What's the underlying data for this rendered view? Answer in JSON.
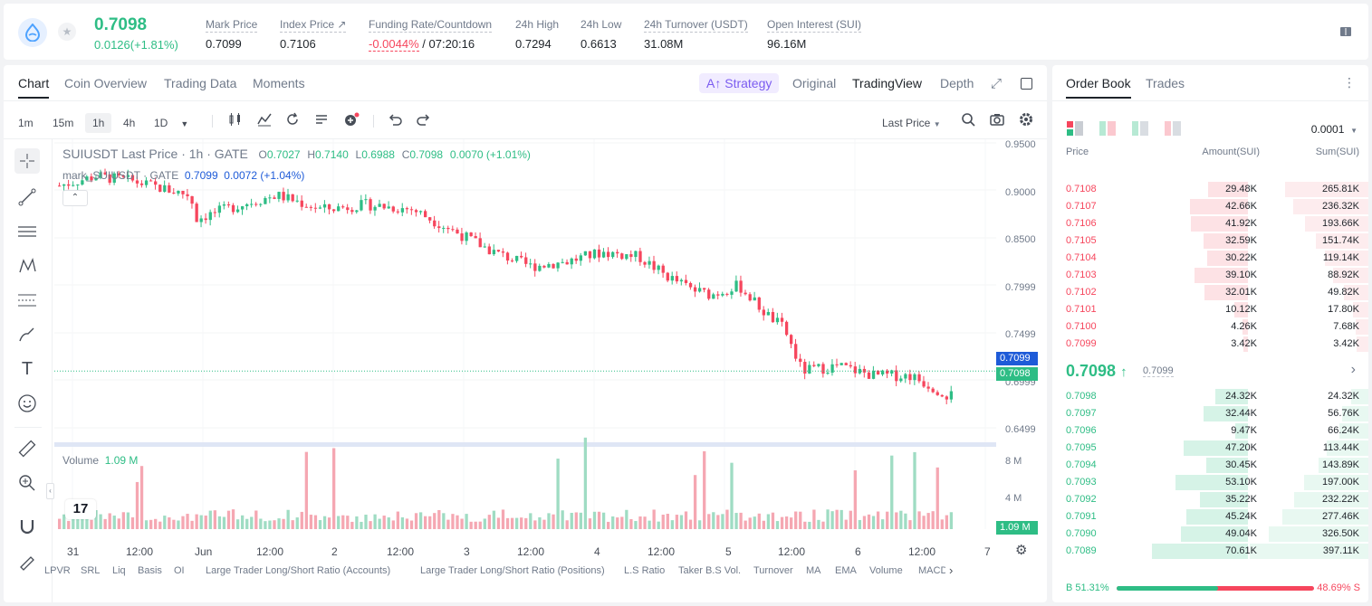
{
  "header": {
    "last_price": "0.7098",
    "change": "0.0126(+1.81%)",
    "stats": [
      {
        "label": "Mark Price",
        "value": "0.7099"
      },
      {
        "label": "Index Price",
        "value": "0.7106"
      },
      {
        "label": "Funding Rate/Countdown",
        "value_neg": "-0.0044%",
        "value": " / 07:20:16"
      },
      {
        "label": "24h High",
        "value": "0.7294"
      },
      {
        "label": "24h Low",
        "value": "0.6613"
      },
      {
        "label": "24h Turnover (USDT)",
        "value": "31.08M"
      },
      {
        "label": "Open Interest (SUI)",
        "value": "96.16M"
      }
    ]
  },
  "chart_tabs": [
    "Chart",
    "Coin Overview",
    "Trading Data",
    "Moments"
  ],
  "view_tabs": {
    "strategy": "Strategy",
    "original": "Original",
    "tradingview": "TradingView",
    "depth": "Depth"
  },
  "intervals": [
    "1m",
    "15m",
    "1h",
    "4h",
    "1D"
  ],
  "last_price_select": "Last Price",
  "legend": {
    "symbol": "SUIUSDT Last Price · 1h · GATE",
    "o": "0.7027",
    "h": "0.7140",
    "l": "0.6988",
    "c": "0.7098",
    "chg": "0.0070 (+1.01%)",
    "mark": "mark_SUIUSDT · GATE",
    "mark_v": "0.7099",
    "mark_chg": "0.0072 (+1.04%)"
  },
  "volume_legend": {
    "label": "Volume",
    "value": "1.09 M"
  },
  "y_labels": [
    "0.9500",
    "0.9000",
    "0.8500",
    "0.7999",
    "0.7499",
    "0.6999",
    "0.6499"
  ],
  "price_tags": {
    "mark": "0.7099",
    "last": "0.7098"
  },
  "vol_y_labels": [
    "8 M",
    "4 M"
  ],
  "vol_tag": "1.09 M",
  "x_labels": [
    "31",
    "12:00",
    "Jun",
    "12:00",
    "2",
    "12:00",
    "3",
    "12:00",
    "4",
    "12:00",
    "5",
    "12:00",
    "6",
    "12:00",
    "7"
  ],
  "indicators": [
    "LPVR",
    "SRL",
    "Liq",
    "Basis",
    "OI",
    "Large Trader Long/Short Ratio (Accounts)",
    "Large Trader Long/Short Ratio (Positions)",
    "L.S Ratio",
    "Taker B.S Vol.",
    "Turnover",
    "MA",
    "EMA",
    "Volume",
    "MACD"
  ],
  "orderbook": {
    "tabs": [
      "Order Book",
      "Trades"
    ],
    "precision": "0.0001",
    "headers": [
      "Price",
      "Amount(SUI)",
      "Sum(SUI)"
    ],
    "asks": [
      {
        "p": "0.7108",
        "a": "29.48K",
        "s": "265.81K"
      },
      {
        "p": "0.7107",
        "a": "42.66K",
        "s": "236.32K"
      },
      {
        "p": "0.7106",
        "a": "41.92K",
        "s": "193.66K"
      },
      {
        "p": "0.7105",
        "a": "32.59K",
        "s": "151.74K"
      },
      {
        "p": "0.7104",
        "a": "30.22K",
        "s": "119.14K"
      },
      {
        "p": "0.7103",
        "a": "39.10K",
        "s": "88.92K"
      },
      {
        "p": "0.7102",
        "a": "32.01K",
        "s": "49.82K"
      },
      {
        "p": "0.7101",
        "a": "10.12K",
        "s": "17.80K"
      },
      {
        "p": "0.7100",
        "a": "4.26K",
        "s": "7.68K"
      },
      {
        "p": "0.7099",
        "a": "3.42K",
        "s": "3.42K"
      }
    ],
    "mid": "0.7098",
    "mid_mark": "0.7099",
    "bids": [
      {
        "p": "0.7098",
        "a": "24.32K",
        "s": "24.32K"
      },
      {
        "p": "0.7097",
        "a": "32.44K",
        "s": "56.76K"
      },
      {
        "p": "0.7096",
        "a": "9.47K",
        "s": "66.24K"
      },
      {
        "p": "0.7095",
        "a": "47.20K",
        "s": "113.44K"
      },
      {
        "p": "0.7094",
        "a": "30.45K",
        "s": "143.89K"
      },
      {
        "p": "0.7093",
        "a": "53.10K",
        "s": "197.00K"
      },
      {
        "p": "0.7092",
        "a": "35.22K",
        "s": "232.22K"
      },
      {
        "p": "0.7091",
        "a": "45.24K",
        "s": "277.46K"
      },
      {
        "p": "0.7090",
        "a": "49.04K",
        "s": "326.50K"
      },
      {
        "p": "0.7089",
        "a": "70.61K",
        "s": "397.11K"
      }
    ],
    "buy_ratio": "B 51.31%",
    "sell_ratio": "48.69% S",
    "buy_pct": 51.31
  },
  "colors": {
    "up": "#2ebd85",
    "down": "#f6465d",
    "accent": "#7b5cf0",
    "mark": "#1e5bd8"
  }
}
